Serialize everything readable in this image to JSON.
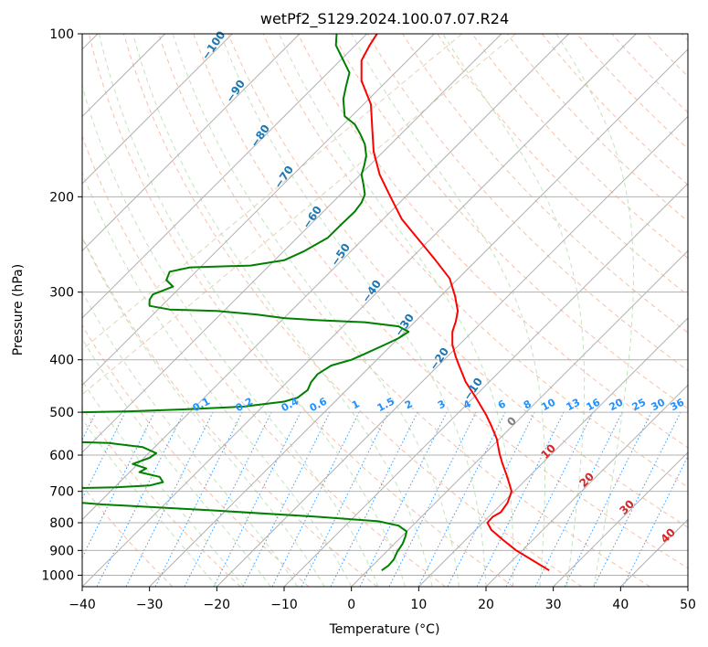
{
  "chart_data": {
    "type": "line",
    "title": "wetPf2_S129.2024.100.07.07.R24",
    "xlabel": "Temperature (°C)",
    "ylabel": "Pressure (hPa)",
    "x_scale": "linear",
    "y_scale": "log (reversed)",
    "xlim": [
      -40,
      50
    ],
    "ylim": [
      1050,
      100
    ],
    "x_ticks": [
      "−40",
      "−30",
      "−20",
      "−10",
      "0",
      "10",
      "20",
      "30",
      "40",
      "50"
    ],
    "y_ticks": [
      "100",
      "200",
      "300",
      "400",
      "500",
      "600",
      "700",
      "800",
      "900",
      "1000"
    ],
    "grid": true,
    "series": [
      {
        "kind": "temperature",
        "color": "#ff0000",
        "points": [
          [
            29.4,
            980
          ],
          [
            27.0,
            940
          ],
          [
            24.5,
            900
          ],
          [
            22.5,
            860
          ],
          [
            20.8,
            825
          ],
          [
            20.2,
            800
          ],
          [
            21.0,
            780
          ],
          [
            22.2,
            765
          ],
          [
            23.2,
            735
          ],
          [
            23.8,
            700
          ],
          [
            23.5,
            680
          ],
          [
            23.0,
            650
          ],
          [
            22.4,
            620
          ],
          [
            22.0,
            595
          ],
          [
            21.6,
            560
          ],
          [
            20.8,
            530
          ],
          [
            20.0,
            505
          ],
          [
            18.5,
            470
          ],
          [
            17.0,
            440
          ],
          [
            16.0,
            410
          ],
          [
            15.5,
            395
          ],
          [
            15.0,
            375
          ],
          [
            15.0,
            355
          ],
          [
            15.5,
            340
          ],
          [
            15.8,
            325
          ],
          [
            15.4,
            305
          ],
          [
            14.6,
            283
          ],
          [
            12.5,
            262
          ],
          [
            10.0,
            240
          ],
          [
            7.5,
            220
          ],
          [
            5.8,
            200
          ],
          [
            4.2,
            182
          ],
          [
            3.3,
            165
          ],
          [
            3.1,
            150
          ],
          [
            2.9,
            135
          ],
          [
            1.5,
            122
          ],
          [
            1.5,
            112
          ],
          [
            2.7,
            105
          ],
          [
            3.8,
            100
          ]
        ]
      },
      {
        "kind": "dewpoint",
        "color": "#008000",
        "segments": [
          [
            [
              4.5,
              980
            ],
            [
              5.5,
              960
            ],
            [
              6.3,
              935
            ],
            [
              6.8,
              905
            ],
            [
              7.6,
              875
            ],
            [
              8.0,
              850
            ],
            [
              8.2,
              830
            ],
            [
              7.0,
              810
            ],
            [
              4.0,
              795
            ],
            [
              -5.0,
              780
            ],
            [
              -20.0,
              760
            ],
            [
              -37.0,
              740
            ],
            [
              -40.0,
              735
            ]
          ],
          [
            [
              -40.0,
              690
            ],
            [
              -35.0,
              688
            ],
            [
              -30.0,
              683
            ],
            [
              -28.0,
              673
            ],
            [
              -28.5,
              658
            ],
            [
              -31.5,
              645
            ],
            [
              -30.5,
              635
            ],
            [
              -32.5,
              623
            ],
            [
              -30.0,
              607
            ],
            [
              -29.0,
              595
            ],
            [
              -31.0,
              580
            ],
            [
              -36.0,
              570
            ],
            [
              -40.0,
              568
            ]
          ],
          [
            [
              -40.0,
              500
            ],
            [
              -33.0,
              498
            ],
            [
              -25.0,
              494
            ],
            [
              -16.0,
              488
            ],
            [
              -10.0,
              478
            ],
            [
              -8.0,
              470
            ],
            [
              -6.5,
              455
            ],
            [
              -6.0,
              440
            ],
            [
              -5.0,
              425
            ],
            [
              -3.0,
              410
            ],
            [
              0.0,
              400
            ],
            [
              2.0,
              390
            ],
            [
              5.0,
              375
            ],
            [
              7.0,
              365
            ],
            [
              8.5,
              355
            ],
            [
              7.0,
              347
            ],
            [
              2.0,
              341
            ],
            [
              -5.0,
              338
            ],
            [
              -10.0,
              335
            ],
            [
              -14.0,
              330
            ],
            [
              -20.0,
              325
            ],
            [
              -27.0,
              323
            ],
            [
              -30.0,
              318
            ],
            [
              -30.0,
              310
            ],
            [
              -29.5,
              303
            ],
            [
              -28.0,
              298
            ],
            [
              -26.5,
              293
            ],
            [
              -27.5,
              285
            ],
            [
              -27.0,
              275
            ],
            [
              -24.0,
              270
            ],
            [
              -15.0,
              268
            ],
            [
              -10.0,
              262
            ],
            [
              -7.0,
              252
            ],
            [
              -3.5,
              238
            ],
            [
              -1.5,
              225
            ],
            [
              0.5,
              213
            ],
            [
              1.5,
              205
            ],
            [
              2.0,
              198
            ],
            [
              1.8,
              190
            ],
            [
              1.5,
              182
            ],
            [
              1.9,
              175
            ],
            [
              2.2,
              168
            ],
            [
              2.0,
              160
            ],
            [
              1.3,
              153
            ],
            [
              0.5,
              147
            ],
            [
              -1.0,
              142
            ],
            [
              -1.2,
              132
            ],
            [
              -0.8,
              125
            ],
            [
              -0.3,
              118
            ],
            [
              -1.5,
              110
            ],
            [
              -2.3,
              105
            ],
            [
              -2.2,
              100
            ]
          ]
        ]
      }
    ],
    "dry_adiabat_labels": [
      "−100",
      "−90",
      "−80",
      "−70",
      "−60",
      "−50",
      "−40",
      "−30",
      "−20",
      "−10"
    ],
    "moist_adiabat_labels": [
      "0",
      "10",
      "20",
      "30",
      "40"
    ],
    "mixing_ratio_labels": [
      "0.1",
      "0.2",
      "0.4",
      "0.6",
      "1",
      "1.5",
      "2",
      "3",
      "4",
      "6",
      "8",
      "10",
      "13",
      "16",
      "20",
      "25",
      "30",
      "36"
    ],
    "colors": {
      "temperature": "#ff0000",
      "dewpoint": "#008000",
      "dry_adiabat": "#1f77b4",
      "mixing_ratio": "#1e90ff",
      "moist_adiabat": "#d62728",
      "isotherm_zero": "#808080"
    }
  }
}
